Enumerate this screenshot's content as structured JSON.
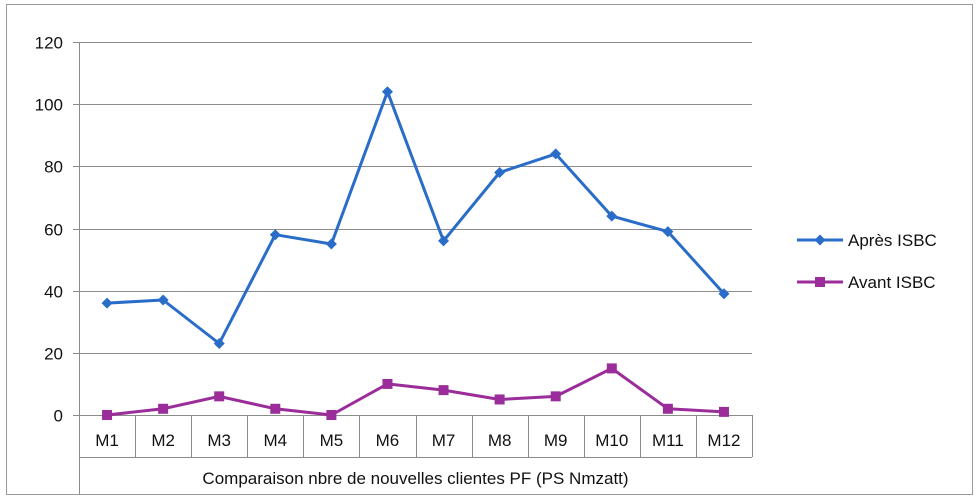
{
  "chart_data": {
    "type": "line",
    "title": "",
    "xlabel": "Comparaison nbre de nouvelles clientes PF (PS Nmzatt)",
    "ylabel": "",
    "categories": [
      "M1",
      "M2",
      "M3",
      "M4",
      "M5",
      "M6",
      "M7",
      "M8",
      "M9",
      "M10",
      "M11",
      "M12"
    ],
    "ylim": [
      0,
      120
    ],
    "yticks": [
      0,
      20,
      40,
      60,
      80,
      100,
      120
    ],
    "grid": true,
    "legend_position": "right",
    "series": [
      {
        "name": "Après ISBC",
        "color": "#2a6dc8",
        "marker": "diamond",
        "values": [
          36,
          37,
          23,
          58,
          55,
          104,
          56,
          78,
          84,
          64,
          59,
          39
        ]
      },
      {
        "name": "Avant ISBC",
        "color": "#9b2d9b",
        "marker": "square",
        "values": [
          0,
          2,
          6,
          2,
          0,
          10,
          8,
          5,
          6,
          15,
          2,
          1
        ]
      }
    ]
  }
}
